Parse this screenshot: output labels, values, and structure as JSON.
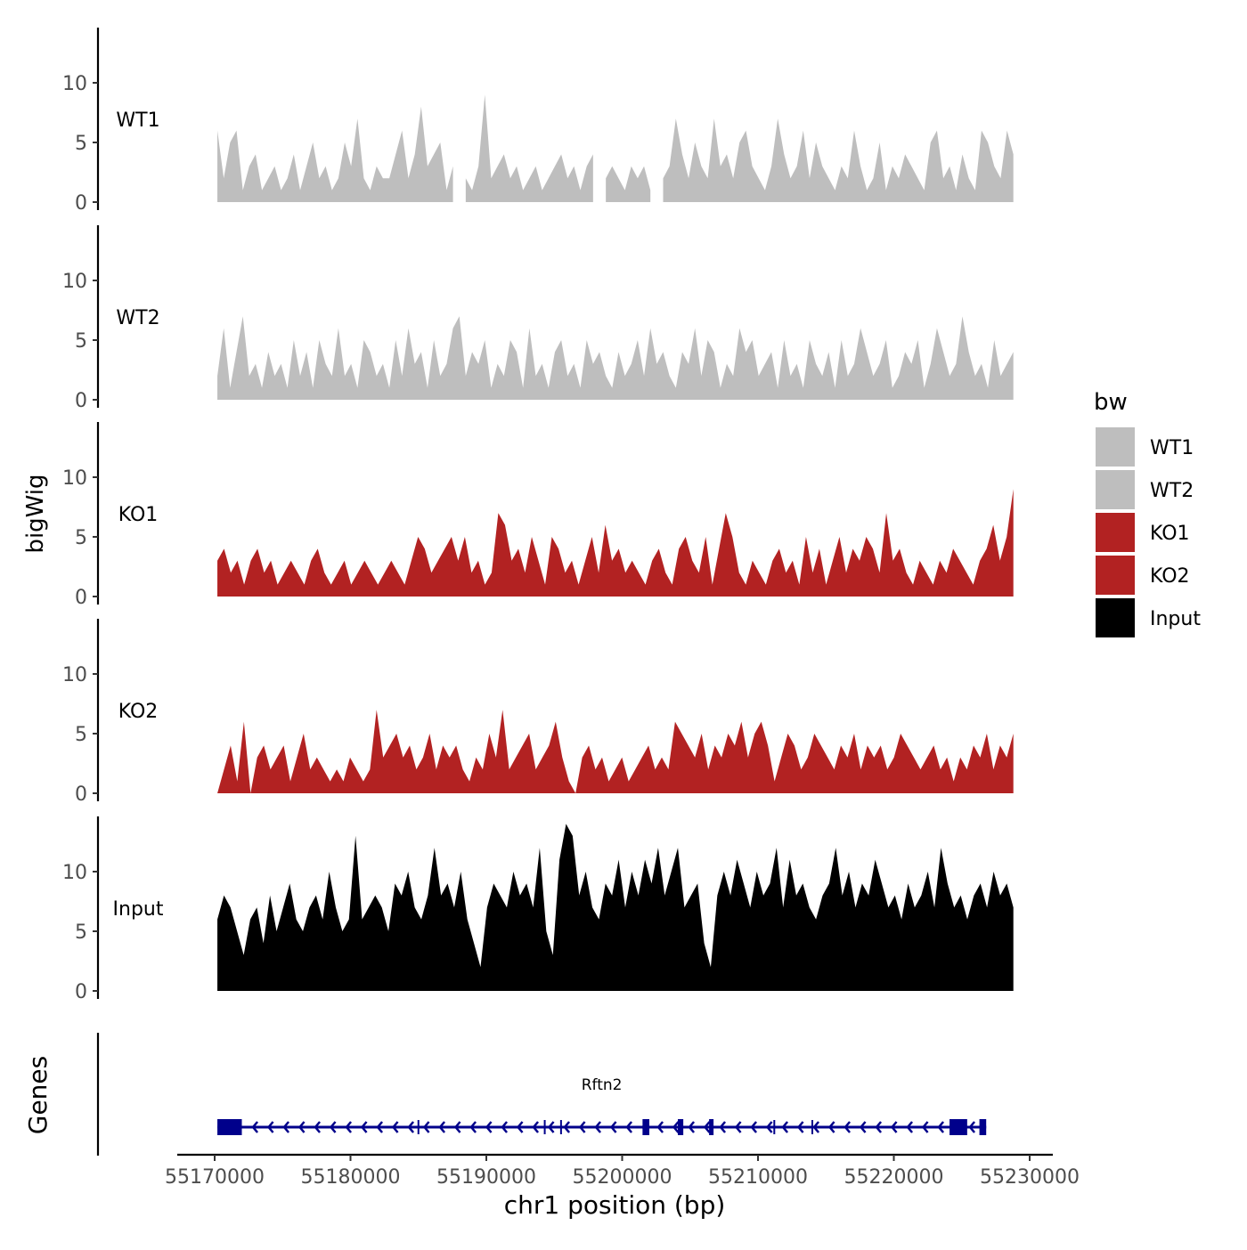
{
  "chart_data": {
    "type": "area",
    "ylabel": "bigWig",
    "xlabel": "chr1 position (bp)",
    "genes_label": "Genes",
    "x_ticks": [
      55170000,
      55180000,
      55190000,
      55200000,
      55210000,
      55220000,
      55230000
    ],
    "x_tick_labels": [
      "55170000",
      "55180000",
      "55190000",
      "55200000",
      "55210000",
      "55220000",
      "55230000"
    ],
    "xlim": [
      55167500,
      55231700
    ],
    "data_start": 55170200,
    "data_end": 55228800,
    "y_ticks": [
      0,
      5,
      10
    ],
    "y_tick_labels": [
      "0",
      "5",
      "10"
    ],
    "ylim": [
      0,
      14.5
    ],
    "legend": {
      "title": "bw",
      "position": "right",
      "items": [
        {
          "label": "WT1",
          "color": "#bebebe"
        },
        {
          "label": "WT2",
          "color": "#bebebe"
        },
        {
          "label": "KO1",
          "color": "#b22222"
        },
        {
          "label": "KO2",
          "color": "#b22222"
        },
        {
          "label": "Input",
          "color": "#000000"
        }
      ]
    },
    "tracks": [
      {
        "name": "WT1",
        "color": "#bebebe",
        "values": [
          6,
          2,
          5,
          6,
          1,
          3,
          4,
          1,
          2,
          3,
          1,
          2,
          4,
          1,
          3,
          5,
          2,
          3,
          1,
          2,
          5,
          3,
          7,
          2,
          1,
          3,
          2,
          2,
          4,
          6,
          2,
          4,
          8,
          3,
          4,
          5,
          1,
          3,
          null,
          2,
          1,
          3,
          9,
          2,
          3,
          4,
          2,
          3,
          1,
          2,
          3,
          1,
          2,
          3,
          4,
          2,
          3,
          1,
          3,
          4,
          null,
          2,
          3,
          2,
          1,
          3,
          2,
          3,
          1,
          null,
          2,
          3,
          7,
          4,
          2,
          5,
          3,
          2,
          7,
          3,
          4,
          2,
          5,
          6,
          3,
          2,
          1,
          3,
          7,
          4,
          2,
          3,
          6,
          2,
          5,
          3,
          2,
          1,
          3,
          2,
          6,
          3,
          1,
          2,
          5,
          1,
          3,
          2,
          4,
          3,
          2,
          1,
          5,
          6,
          2,
          3,
          1,
          4,
          2,
          1,
          6,
          5,
          3,
          2,
          6,
          4
        ]
      },
      {
        "name": "WT2",
        "color": "#bebebe",
        "values": [
          2,
          6,
          1,
          4,
          7,
          2,
          3,
          1,
          4,
          2,
          3,
          1,
          5,
          2,
          4,
          1,
          5,
          3,
          2,
          6,
          2,
          3,
          1,
          5,
          4,
          2,
          3,
          1,
          5,
          2,
          6,
          3,
          4,
          1,
          5,
          2,
          3,
          6,
          7,
          2,
          4,
          3,
          5,
          1,
          3,
          2,
          5,
          4,
          1,
          6,
          2,
          3,
          1,
          4,
          5,
          2,
          3,
          1,
          5,
          3,
          4,
          2,
          1,
          4,
          2,
          3,
          5,
          2,
          6,
          3,
          4,
          2,
          1,
          4,
          3,
          6,
          2,
          5,
          4,
          1,
          3,
          2,
          6,
          4,
          5,
          2,
          3,
          4,
          1,
          5,
          2,
          3,
          1,
          5,
          3,
          2,
          4,
          1,
          5,
          2,
          3,
          6,
          4,
          2,
          3,
          5,
          1,
          2,
          4,
          3,
          5,
          1,
          3,
          6,
          4,
          2,
          3,
          7,
          4,
          2,
          3,
          1,
          5,
          2,
          3,
          4
        ]
      },
      {
        "name": "KO1",
        "color": "#b22222",
        "values": [
          3,
          4,
          2,
          3,
          1,
          3,
          4,
          2,
          3,
          1,
          2,
          3,
          2,
          1,
          3,
          4,
          2,
          1,
          2,
          3,
          1,
          2,
          3,
          2,
          1,
          2,
          3,
          2,
          1,
          3,
          5,
          4,
          2,
          3,
          4,
          5,
          3,
          5,
          2,
          3,
          1,
          2,
          7,
          6,
          3,
          4,
          2,
          5,
          3,
          1,
          5,
          4,
          2,
          3,
          1,
          3,
          5,
          2,
          6,
          3,
          4,
          2,
          3,
          2,
          1,
          3,
          4,
          2,
          1,
          4,
          5,
          3,
          2,
          5,
          1,
          4,
          7,
          5,
          2,
          1,
          3,
          2,
          1,
          3,
          4,
          2,
          3,
          1,
          5,
          2,
          4,
          1,
          3,
          5,
          2,
          4,
          3,
          5,
          4,
          2,
          7,
          3,
          4,
          2,
          1,
          3,
          2,
          1,
          3,
          2,
          4,
          3,
          2,
          1,
          3,
          4,
          6,
          3,
          5,
          9
        ]
      },
      {
        "name": "KO2",
        "color": "#b22222",
        "values": [
          0,
          2,
          4,
          1,
          6,
          0,
          3,
          4,
          2,
          3,
          4,
          1,
          3,
          5,
          2,
          3,
          2,
          1,
          2,
          1,
          3,
          2,
          1,
          2,
          7,
          3,
          4,
          5,
          3,
          4,
          2,
          3,
          5,
          2,
          4,
          3,
          4,
          2,
          1,
          3,
          2,
          5,
          3,
          7,
          2,
          3,
          4,
          5,
          2,
          3,
          4,
          6,
          3,
          1,
          0,
          3,
          4,
          2,
          3,
          1,
          2,
          3,
          1,
          2,
          3,
          4,
          2,
          3,
          2,
          6,
          5,
          4,
          3,
          5,
          2,
          4,
          3,
          5,
          4,
          6,
          3,
          5,
          6,
          4,
          1,
          3,
          5,
          4,
          2,
          3,
          5,
          4,
          3,
          2,
          4,
          3,
          5,
          2,
          4,
          3,
          4,
          2,
          3,
          5,
          4,
          3,
          2,
          3,
          4,
          2,
          3,
          1,
          3,
          2,
          4,
          3,
          5,
          2,
          4,
          3,
          5
        ]
      },
      {
        "name": "Input",
        "color": "#000000",
        "values": [
          6,
          8,
          7,
          5,
          3,
          6,
          7,
          4,
          8,
          5,
          7,
          9,
          6,
          5,
          7,
          8,
          6,
          10,
          7,
          5,
          6,
          13,
          6,
          7,
          8,
          7,
          5,
          9,
          8,
          10,
          7,
          6,
          8,
          12,
          8,
          9,
          7,
          10,
          6,
          4,
          2,
          7,
          9,
          8,
          7,
          10,
          8,
          9,
          7,
          12,
          5,
          3,
          11,
          14,
          13,
          8,
          10,
          7,
          6,
          9,
          8,
          11,
          7,
          10,
          8,
          11,
          9,
          12,
          8,
          10,
          12,
          7,
          8,
          9,
          4,
          2,
          8,
          10,
          8,
          11,
          9,
          7,
          10,
          8,
          9,
          12,
          7,
          11,
          8,
          9,
          7,
          6,
          8,
          9,
          12,
          8,
          10,
          7,
          9,
          8,
          11,
          9,
          7,
          8,
          6,
          9,
          7,
          8,
          10,
          7,
          12,
          9,
          7,
          8,
          6,
          8,
          9,
          7,
          10,
          8,
          9,
          7
        ]
      }
    ],
    "gene": {
      "name": "Rftn2",
      "strand": "-",
      "start": 55170200,
      "end": 55226800,
      "color": "#00008b",
      "exons": [
        [
          55170200,
          55172000
        ],
        [
          55201500,
          55202000
        ],
        [
          55204100,
          55204500
        ],
        [
          55206400,
          55206700
        ],
        [
          55224100,
          55225400
        ],
        [
          55226300,
          55226800
        ]
      ],
      "small_exons": [
        55185000,
        55194300,
        55195500,
        55211200,
        55214000
      ]
    }
  }
}
